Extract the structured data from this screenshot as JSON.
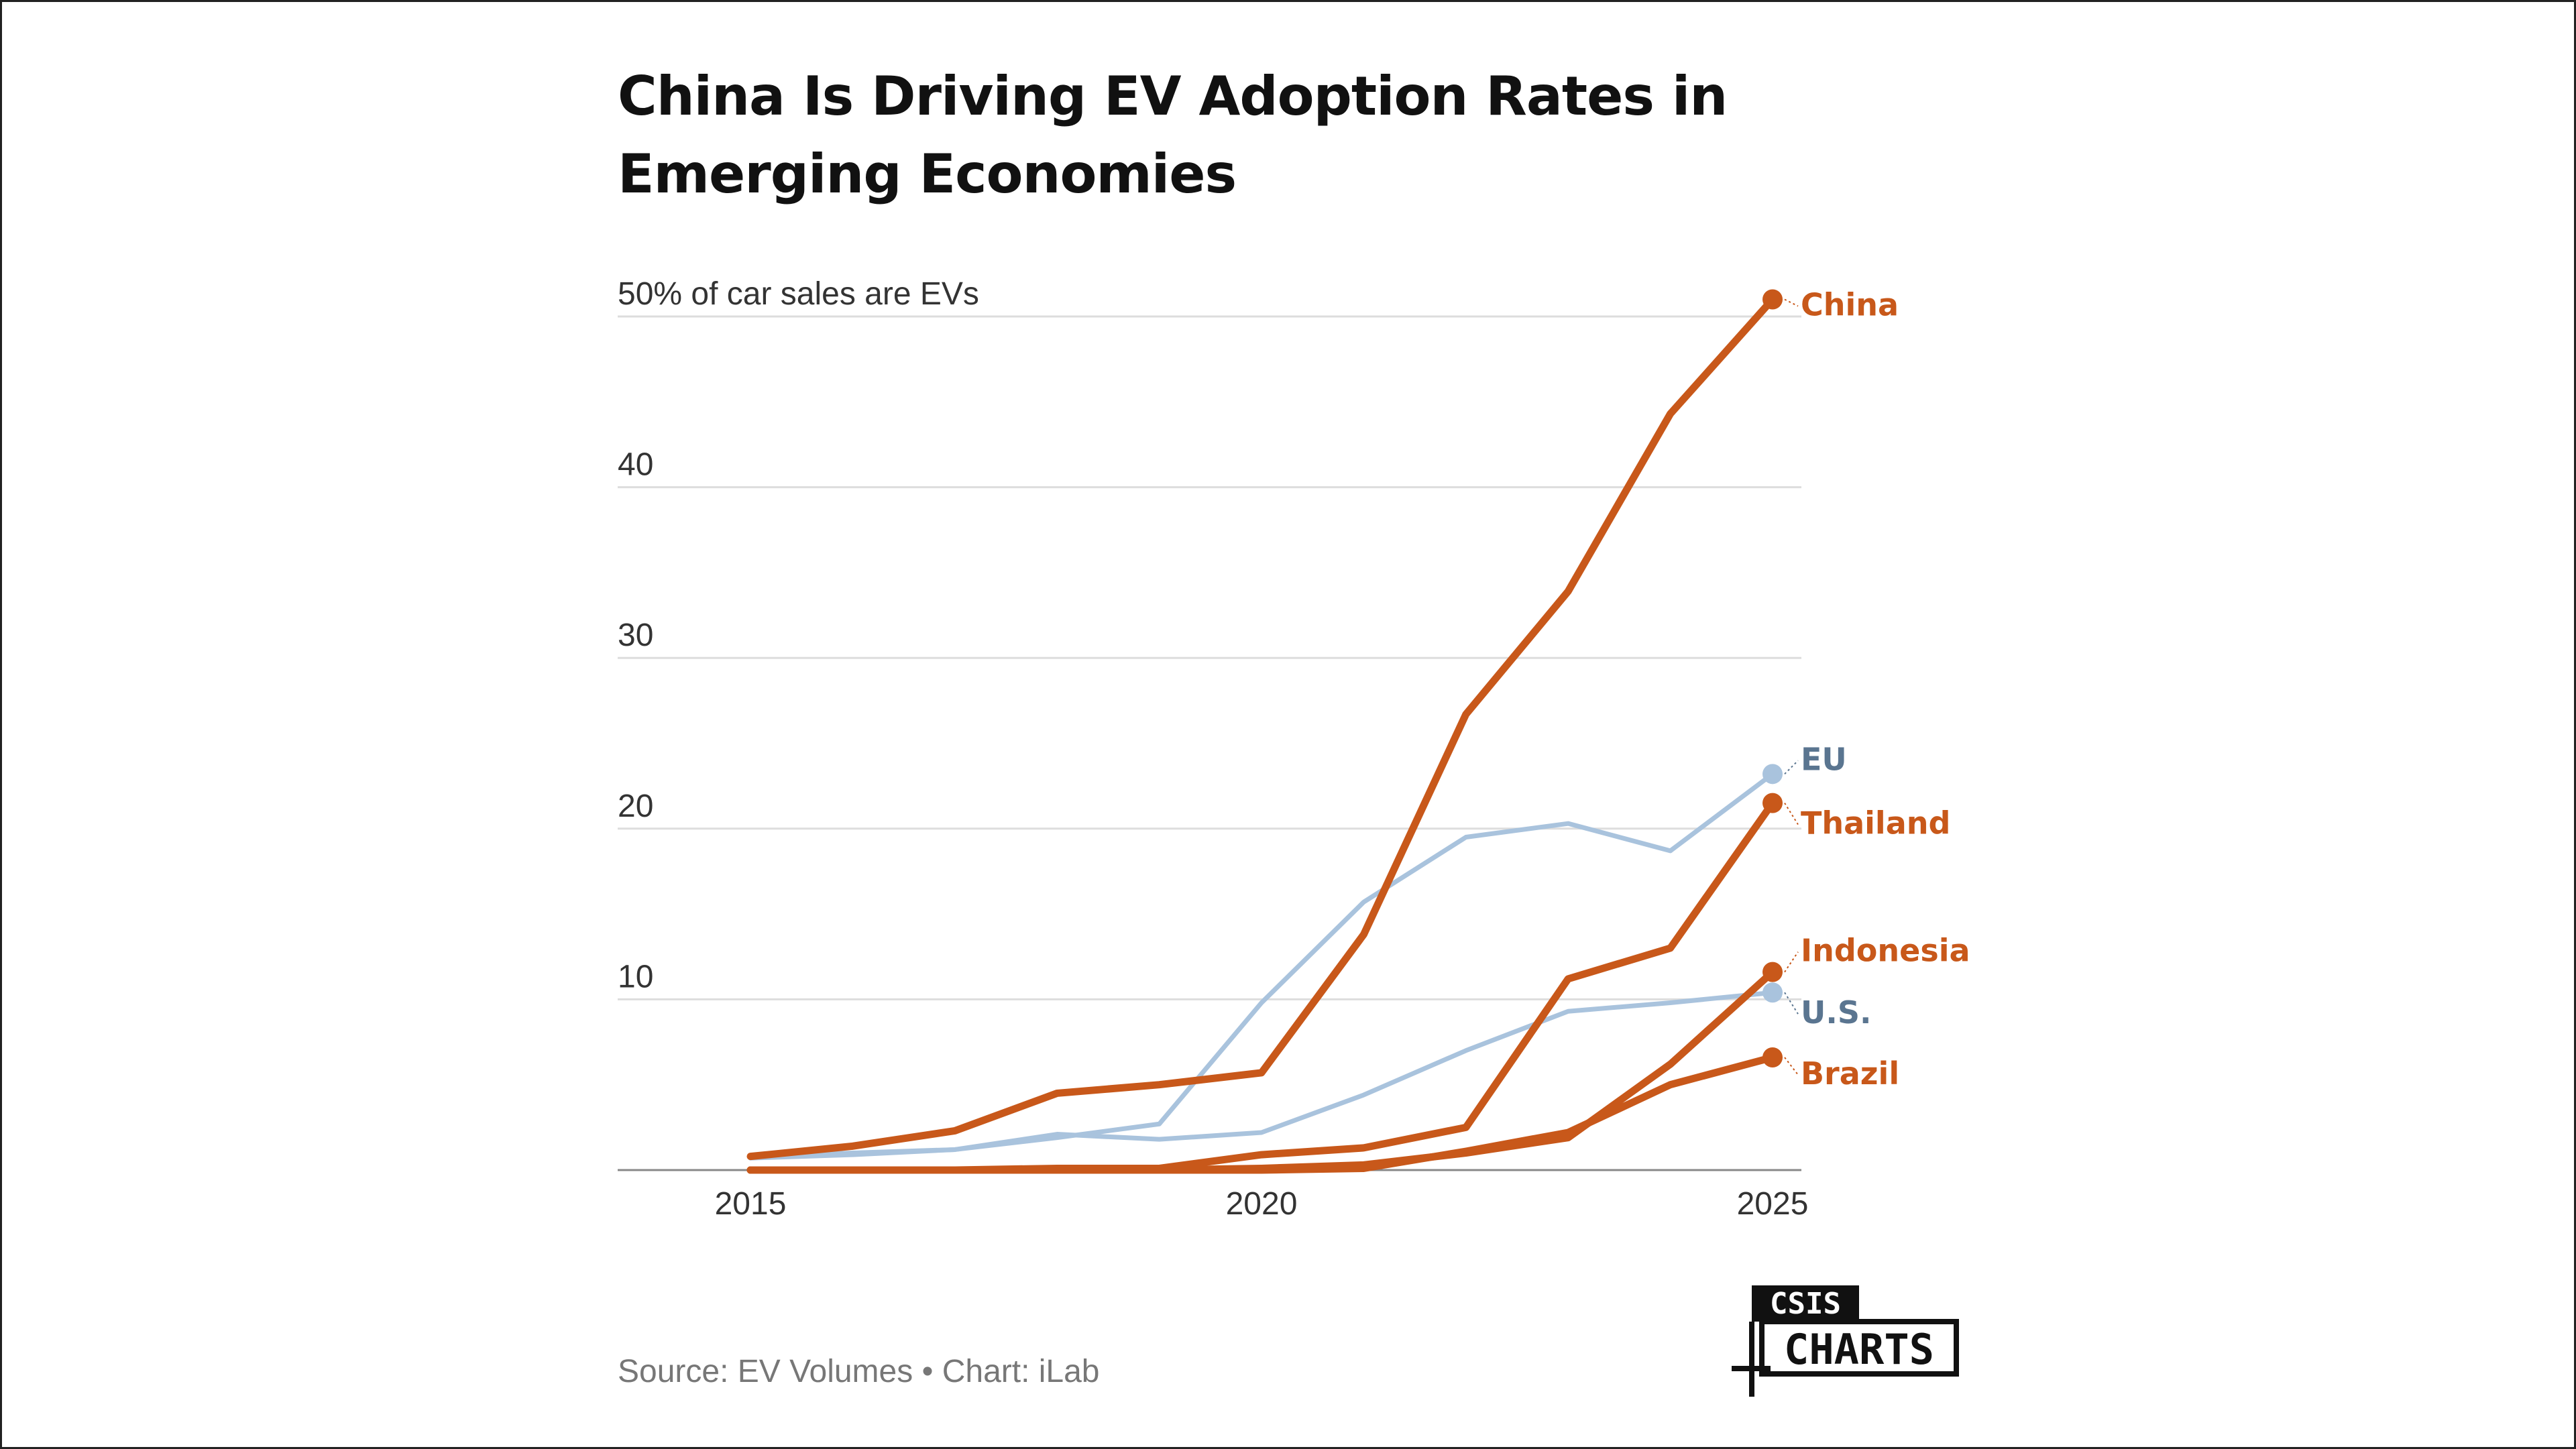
{
  "title": "China Is Driving EV Adoption Rates in Emerging Economies",
  "source": "Source: EV Volumes • Chart: iLab",
  "logo": {
    "top": "CSIS",
    "bottom": "CHARTS"
  },
  "colors": {
    "emerging": "#C8581A",
    "developed": "#A9C3DD",
    "developed_label": "#5A7590",
    "grid": "#DDDDDD",
    "axis": "#888888"
  },
  "chart_data": {
    "type": "line",
    "title": "China Is Driving EV Adoption Rates in Emerging Economies",
    "ylabel_top": "50% of car sales are EVs",
    "x": [
      2015,
      2016,
      2017,
      2018,
      2019,
      2020,
      2021,
      2022,
      2023,
      2024,
      2025
    ],
    "xlim": [
      2015,
      2025
    ],
    "ylim": [
      0,
      50
    ],
    "xticks": [
      2015,
      2020,
      2025
    ],
    "xtick_labels": [
      "2015",
      "2020",
      "2025"
    ],
    "yticks": [
      10,
      20,
      30,
      40,
      50
    ],
    "ytick_labels": [
      "10",
      "20",
      "30",
      "40",
      "50% of car sales are EVs"
    ],
    "grid": true,
    "series": [
      {
        "name": "EU",
        "group": "developed",
        "values": [
          0.8,
          1.0,
          1.2,
          1.9,
          2.7,
          9.8,
          15.7,
          19.5,
          20.3,
          18.7,
          23.2
        ]
      },
      {
        "name": "U.S.",
        "group": "developed",
        "values": [
          0.7,
          0.9,
          1.2,
          2.1,
          1.8,
          2.2,
          4.4,
          7.0,
          9.3,
          9.8,
          10.4
        ]
      },
      {
        "name": "China",
        "group": "emerging",
        "values": [
          0.8,
          1.4,
          2.3,
          4.5,
          5.0,
          5.7,
          13.8,
          26.7,
          33.9,
          44.3,
          51.0
        ]
      },
      {
        "name": "Thailand",
        "group": "emerging",
        "values": [
          0.0,
          0.0,
          0.0,
          0.1,
          0.1,
          0.9,
          1.3,
          2.5,
          11.2,
          13.0,
          21.5
        ]
      },
      {
        "name": "Indonesia",
        "group": "emerging",
        "values": [
          0.0,
          0.0,
          0.0,
          0.0,
          0.0,
          0.1,
          0.3,
          1.0,
          1.9,
          6.2,
          11.6
        ]
      },
      {
        "name": "Brazil",
        "group": "emerging",
        "values": [
          0.0,
          0.0,
          0.0,
          0.0,
          0.0,
          0.0,
          0.1,
          1.1,
          2.2,
          5.0,
          6.6
        ]
      }
    ]
  }
}
